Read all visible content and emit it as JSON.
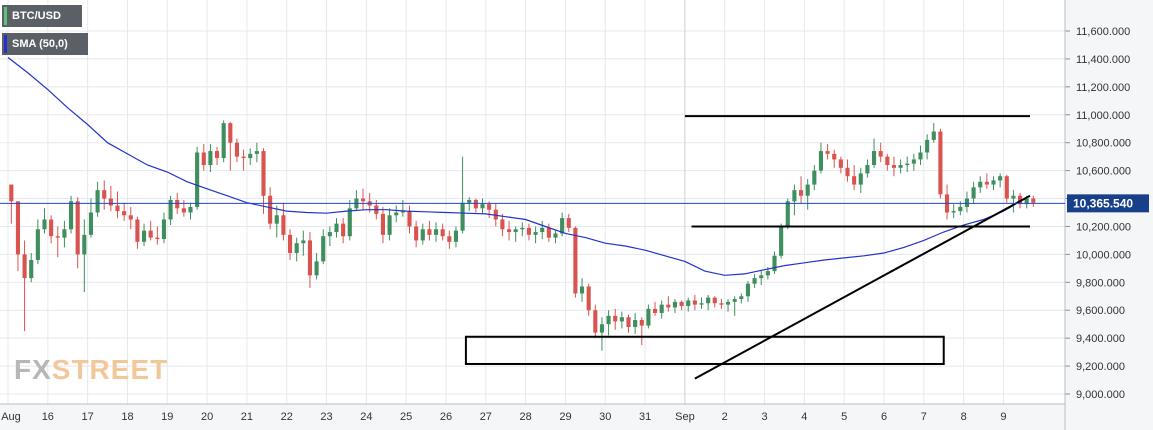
{
  "chart_data": {
    "type": "candlestick",
    "title": "",
    "instrument": "BTC/USD",
    "indicator": "SMA (50,0)",
    "current_price": "10,365.540",
    "colors": {
      "up": "#3e8e5e",
      "down": "#d9534f",
      "sma": "#2233cc",
      "trendline": "#000000",
      "price_line": "#2244cc",
      "grid": "#e6e8ec",
      "axis_bg": "#f5f6f8",
      "price_label_bg": "#173f8a"
    },
    "y_axis": {
      "min": 8950,
      "max": 11800,
      "ticks": [
        9000,
        9200,
        9400,
        9600,
        9800,
        10000,
        10200,
        10400,
        10600,
        10800,
        11000,
        11200,
        11400,
        11600
      ],
      "tick_labels": [
        "9,000.000",
        "9,200.000",
        "9,400.000",
        "9,600.000",
        "9,800.000",
        "10,000.000",
        "10,200.000",
        "10,400.000",
        "10,600.000",
        "10,800.000",
        "11,000.000",
        "11,200.000",
        "11,400.000",
        "11,600.000"
      ]
    },
    "x_axis": {
      "labels": [
        "Aug",
        "16",
        "17",
        "18",
        "19",
        "20",
        "21",
        "22",
        "23",
        "24",
        "25",
        "26",
        "27",
        "28",
        "29",
        "30",
        "31",
        "Sep",
        "2",
        "3",
        "4",
        "5",
        "6",
        "7",
        "8",
        "9"
      ],
      "start_hour": 0,
      "end_hour": 616,
      "candle_hours": 4,
      "session_break_hour": 408
    },
    "candles": [
      [
        10500,
        10500,
        10220,
        10380
      ],
      [
        10380,
        10380,
        9880,
        10000
      ],
      [
        10000,
        10100,
        9450,
        9830
      ],
      [
        9830,
        10010,
        9800,
        9960
      ],
      [
        9960,
        10250,
        9930,
        10180
      ],
      [
        10180,
        10330,
        10150,
        10250
      ],
      [
        10250,
        10280,
        10080,
        10130
      ],
      [
        10130,
        10200,
        9980,
        10120
      ],
      [
        10120,
        10240,
        10050,
        10180
      ],
      [
        10180,
        10420,
        10150,
        10380
      ],
      [
        10380,
        10410,
        9900,
        10000
      ],
      [
        10000,
        10250,
        9730,
        10140
      ],
      [
        10140,
        10400,
        10120,
        10300
      ],
      [
        10300,
        10520,
        10270,
        10460
      ],
      [
        10460,
        10530,
        10320,
        10400
      ],
      [
        10400,
        10490,
        10310,
        10350
      ],
      [
        10350,
        10450,
        10260,
        10310
      ],
      [
        10310,
        10370,
        10240,
        10280
      ],
      [
        10280,
        10340,
        10180,
        10250
      ],
      [
        10250,
        10270,
        10040,
        10090
      ],
      [
        10090,
        10220,
        10060,
        10170
      ],
      [
        10170,
        10240,
        10100,
        10120
      ],
      [
        10120,
        10200,
        10070,
        10110
      ],
      [
        10110,
        10300,
        10080,
        10250
      ],
      [
        10250,
        10420,
        10210,
        10390
      ],
      [
        10390,
        10440,
        10290,
        10330
      ],
      [
        10330,
        10390,
        10270,
        10300
      ],
      [
        10300,
        10370,
        10250,
        10340
      ],
      [
        10340,
        10770,
        10320,
        10730
      ],
      [
        10730,
        10790,
        10600,
        10640
      ],
      [
        10640,
        10790,
        10590,
        10740
      ],
      [
        10740,
        10770,
        10640,
        10690
      ],
      [
        10690,
        10960,
        10660,
        10940
      ],
      [
        10940,
        10950,
        10600,
        10800
      ],
      [
        10800,
        10830,
        10660,
        10700
      ],
      [
        10700,
        10750,
        10600,
        10690
      ],
      [
        10690,
        10760,
        10640,
        10720
      ],
      [
        10720,
        10800,
        10660,
        10740
      ],
      [
        10740,
        10760,
        10290,
        10420
      ],
      [
        10420,
        10480,
        10180,
        10220
      ],
      [
        10220,
        10350,
        10120,
        10280
      ],
      [
        10280,
        10370,
        10100,
        10140
      ],
      [
        10140,
        10180,
        9960,
        10010
      ],
      [
        10010,
        10120,
        9950,
        10080
      ],
      [
        10080,
        10170,
        9990,
        10100
      ],
      [
        10100,
        10160,
        9760,
        9850
      ],
      [
        9850,
        10010,
        9820,
        9950
      ],
      [
        9950,
        10180,
        9930,
        10130
      ],
      [
        10130,
        10200,
        10060,
        10160
      ],
      [
        10160,
        10260,
        10120,
        10220
      ],
      [
        10220,
        10260,
        10080,
        10130
      ],
      [
        10130,
        10390,
        10100,
        10330
      ],
      [
        10330,
        10460,
        10310,
        10400
      ],
      [
        10400,
        10470,
        10320,
        10380
      ],
      [
        10380,
        10440,
        10300,
        10350
      ],
      [
        10350,
        10390,
        10250,
        10290
      ],
      [
        10290,
        10340,
        10080,
        10140
      ],
      [
        10140,
        10330,
        10100,
        10280
      ],
      [
        10280,
        10350,
        10230,
        10300
      ],
      [
        10300,
        10390,
        10270,
        10310
      ],
      [
        10310,
        10350,
        10150,
        10200
      ],
      [
        10200,
        10240,
        10050,
        10100
      ],
      [
        10100,
        10220,
        10070,
        10180
      ],
      [
        10180,
        10240,
        10100,
        10140
      ],
      [
        10140,
        10230,
        10090,
        10180
      ],
      [
        10180,
        10220,
        10100,
        10130
      ],
      [
        10130,
        10170,
        10040,
        10090
      ],
      [
        10090,
        10200,
        10050,
        10170
      ],
      [
        10170,
        10700,
        10150,
        10370
      ],
      [
        10370,
        10410,
        10310,
        10390
      ],
      [
        10390,
        10400,
        10300,
        10330
      ],
      [
        10330,
        10400,
        10290,
        10360
      ],
      [
        10360,
        10380,
        10260,
        10320
      ],
      [
        10320,
        10360,
        10200,
        10250
      ],
      [
        10250,
        10290,
        10130,
        10180
      ],
      [
        10180,
        10240,
        10100,
        10160
      ],
      [
        10160,
        10200,
        10090,
        10180
      ],
      [
        10180,
        10230,
        10130,
        10190
      ],
      [
        10190,
        10220,
        10100,
        10140
      ],
      [
        10140,
        10200,
        10080,
        10160
      ],
      [
        10160,
        10240,
        10110,
        10190
      ],
      [
        10190,
        10220,
        10090,
        10120
      ],
      [
        10120,
        10170,
        10080,
        10150
      ],
      [
        10150,
        10300,
        10130,
        10260
      ],
      [
        10260,
        10290,
        10160,
        10190
      ],
      [
        10190,
        10200,
        9690,
        9720
      ],
      [
        9720,
        9830,
        9660,
        9770
      ],
      [
        9770,
        9790,
        9560,
        9600
      ],
      [
        9600,
        9640,
        9400,
        9440
      ],
      [
        9440,
        9550,
        9310,
        9500
      ],
      [
        9500,
        9600,
        9420,
        9560
      ],
      [
        9560,
        9610,
        9460,
        9520
      ],
      [
        9520,
        9590,
        9470,
        9550
      ],
      [
        9550,
        9570,
        9440,
        9480
      ],
      [
        9480,
        9580,
        9430,
        9530
      ],
      [
        9530,
        9550,
        9350,
        9490
      ],
      [
        9490,
        9640,
        9470,
        9610
      ],
      [
        9610,
        9660,
        9560,
        9580
      ],
      [
        9580,
        9670,
        9540,
        9640
      ],
      [
        9640,
        9700,
        9590,
        9620
      ],
      [
        9620,
        9680,
        9580,
        9660
      ],
      [
        9660,
        9670,
        9600,
        9630
      ],
      [
        9630,
        9690,
        9590,
        9670
      ],
      [
        9670,
        9710,
        9600,
        9640
      ],
      [
        9640,
        9690,
        9610,
        9650
      ],
      [
        9650,
        9710,
        9600,
        9690
      ],
      [
        9690,
        9700,
        9620,
        9650
      ],
      [
        9650,
        9680,
        9610,
        9640
      ],
      [
        9640,
        9680,
        9590,
        9660
      ],
      [
        9660,
        9700,
        9560,
        9680
      ],
      [
        9680,
        9720,
        9650,
        9700
      ],
      [
        9700,
        9810,
        9660,
        9790
      ],
      [
        9790,
        9860,
        9760,
        9830
      ],
      [
        9830,
        9880,
        9780,
        9850
      ],
      [
        9850,
        9910,
        9820,
        9880
      ],
      [
        9880,
        10020,
        9860,
        9990
      ],
      [
        9990,
        10220,
        9970,
        10200
      ],
      [
        10200,
        10400,
        10180,
        10380
      ],
      [
        10380,
        10500,
        10280,
        10460
      ],
      [
        10460,
        10560,
        10360,
        10420
      ],
      [
        10420,
        10540,
        10320,
        10500
      ],
      [
        10500,
        10640,
        10460,
        10600
      ],
      [
        10600,
        10800,
        10580,
        10740
      ],
      [
        10740,
        10790,
        10680,
        10720
      ],
      [
        10720,
        10750,
        10620,
        10680
      ],
      [
        10680,
        10700,
        10580,
        10620
      ],
      [
        10620,
        10680,
        10520,
        10560
      ],
      [
        10560,
        10640,
        10460,
        10500
      ],
      [
        10500,
        10620,
        10440,
        10580
      ],
      [
        10580,
        10680,
        10550,
        10640
      ],
      [
        10640,
        10830,
        10620,
        10740
      ],
      [
        10740,
        10800,
        10660,
        10700
      ],
      [
        10700,
        10720,
        10600,
        10640
      ],
      [
        10640,
        10700,
        10560,
        10620
      ],
      [
        10620,
        10680,
        10580,
        10640
      ],
      [
        10640,
        10700,
        10590,
        10650
      ],
      [
        10650,
        10720,
        10600,
        10680
      ],
      [
        10680,
        10780,
        10640,
        10730
      ],
      [
        10730,
        10860,
        10680,
        10820
      ],
      [
        10820,
        10940,
        10800,
        10880
      ],
      [
        10880,
        10900,
        10400,
        10430
      ],
      [
        10430,
        10500,
        10250,
        10300
      ],
      [
        10300,
        10360,
        10260,
        10310
      ],
      [
        10310,
        10380,
        10280,
        10340
      ],
      [
        10340,
        10450,
        10300,
        10400
      ],
      [
        10400,
        10520,
        10360,
        10480
      ],
      [
        10480,
        10560,
        10440,
        10520
      ],
      [
        10520,
        10580,
        10470,
        10500
      ],
      [
        10500,
        10560,
        10460,
        10530
      ],
      [
        10530,
        10580,
        10480,
        10560
      ],
      [
        10560,
        10570,
        10370,
        10400
      ],
      [
        10400,
        10460,
        10300,
        10420
      ],
      [
        10420,
        10440,
        10330,
        10360
      ],
      [
        10360,
        10420,
        10330,
        10400
      ],
      [
        10400,
        10420,
        10340,
        10370
      ]
    ],
    "sma": [
      [
        0,
        11410
      ],
      [
        12,
        11300
      ],
      [
        24,
        11180
      ],
      [
        36,
        11050
      ],
      [
        48,
        10930
      ],
      [
        60,
        10800
      ],
      [
        72,
        10720
      ],
      [
        84,
        10640
      ],
      [
        96,
        10590
      ],
      [
        108,
        10520
      ],
      [
        120,
        10470
      ],
      [
        132,
        10420
      ],
      [
        144,
        10370
      ],
      [
        156,
        10340
      ],
      [
        168,
        10310
      ],
      [
        180,
        10300
      ],
      [
        192,
        10295
      ],
      [
        204,
        10310
      ],
      [
        216,
        10320
      ],
      [
        228,
        10320
      ],
      [
        240,
        10310
      ],
      [
        252,
        10305
      ],
      [
        264,
        10300
      ],
      [
        276,
        10295
      ],
      [
        288,
        10290
      ],
      [
        300,
        10270
      ],
      [
        312,
        10250
      ],
      [
        324,
        10200
      ],
      [
        336,
        10150
      ],
      [
        348,
        10120
      ],
      [
        360,
        10080
      ],
      [
        372,
        10060
      ],
      [
        384,
        10030
      ],
      [
        396,
        9990
      ],
      [
        408,
        9950
      ],
      [
        420,
        9880
      ],
      [
        432,
        9850
      ],
      [
        444,
        9860
      ],
      [
        456,
        9890
      ],
      [
        468,
        9920
      ],
      [
        480,
        9940
      ],
      [
        492,
        9960
      ],
      [
        504,
        9975
      ],
      [
        516,
        9990
      ],
      [
        528,
        10010
      ],
      [
        540,
        10050
      ],
      [
        552,
        10100
      ],
      [
        564,
        10160
      ],
      [
        576,
        10210
      ],
      [
        588,
        10250
      ],
      [
        600,
        10310
      ],
      [
        606,
        10350
      ]
    ],
    "trendlines": [
      [
        414,
        9110,
        616,
        10420
      ]
    ],
    "horizontal_levels": [
      {
        "price": 10990,
        "from_hour": 408,
        "to_hour": 616
      },
      {
        "price": 10200,
        "from_hour": 412,
        "to_hour": 616
      }
    ],
    "boxes": [
      {
        "from_hour": 276,
        "to_hour": 564,
        "low": 9215,
        "high": 9410
      }
    ],
    "price_line": 10365.54
  },
  "legend": {
    "price_label": "BTC/USD",
    "sma_label": "SMA (50,0)"
  },
  "watermark": {
    "part1": "FX",
    "part2": "STREET"
  }
}
